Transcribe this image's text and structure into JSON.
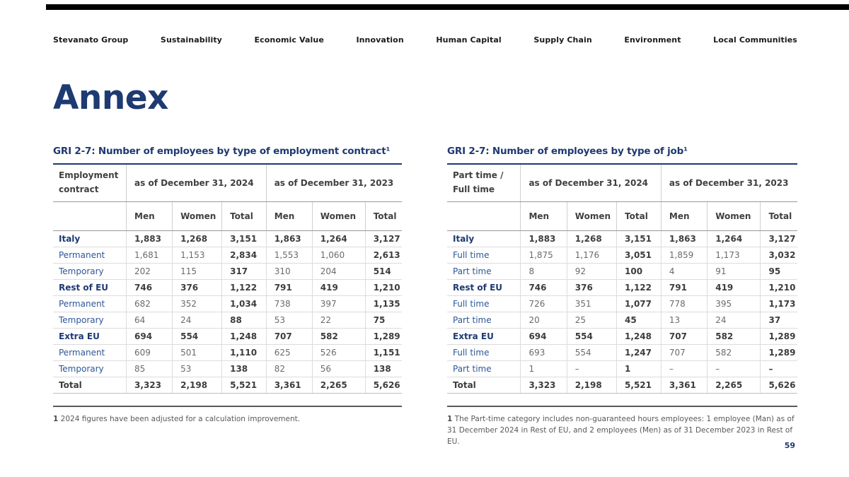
{
  "nav": {
    "items": [
      "Stevanato Group",
      "Sustainability",
      "Economic Value",
      "Innovation",
      "Human Capital",
      "Supply Chain",
      "Environment",
      "Local Communities"
    ]
  },
  "page_title": "Annex",
  "page_number": "59",
  "colors": {
    "navy_accent": "#1e3a72",
    "link_blue": "#2e5697",
    "top_bar": "#000000"
  },
  "tables": [
    {
      "title": "GRI 2-7: Number of employees by type of employment contract¹",
      "row_header": "Employment contract",
      "col_groups": [
        "as of December 31, 2024",
        "as of December 31, 2023"
      ],
      "sub_cols": [
        "Men",
        "Women",
        "Total",
        "Men",
        "Women",
        "Total"
      ],
      "rows": [
        {
          "label": "Italy",
          "style": "group",
          "values": [
            "1,883",
            "1,268",
            "3,151",
            "1,863",
            "1,264",
            "3,127"
          ]
        },
        {
          "label": "Permanent",
          "style": "sub",
          "values": [
            "1,681",
            "1,153",
            "2,834",
            "1,553",
            "1,060",
            "2,613"
          ]
        },
        {
          "label": "Temporary",
          "style": "sub",
          "values": [
            "202",
            "115",
            "317",
            "310",
            "204",
            "514"
          ]
        },
        {
          "label": "Rest of EU",
          "style": "group",
          "values": [
            "746",
            "376",
            "1,122",
            "791",
            "419",
            "1,210"
          ]
        },
        {
          "label": "Permanent",
          "style": "sub",
          "values": [
            "682",
            "352",
            "1,034",
            "738",
            "397",
            "1,135"
          ]
        },
        {
          "label": "Temporary",
          "style": "sub",
          "values": [
            "64",
            "24",
            "88",
            "53",
            "22",
            "75"
          ]
        },
        {
          "label": "Extra EU",
          "style": "group",
          "values": [
            "694",
            "554",
            "1,248",
            "707",
            "582",
            "1,289"
          ]
        },
        {
          "label": "Permanent",
          "style": "sub",
          "values": [
            "609",
            "501",
            "1,110",
            "625",
            "526",
            "1,151"
          ]
        },
        {
          "label": "Temporary",
          "style": "sub",
          "values": [
            "85",
            "53",
            "138",
            "82",
            "56",
            "138"
          ]
        },
        {
          "label": "Total",
          "style": "total",
          "values": [
            "3,323",
            "2,198",
            "5,521",
            "3,361",
            "2,265",
            "5,626"
          ]
        }
      ],
      "footnote": {
        "marker": "1",
        "text": "2024 figures have been adjusted for a calculation improvement."
      }
    },
    {
      "title": "GRI 2-7: Number of employees by type of job¹",
      "row_header": "Part time / Full time",
      "col_groups": [
        "as of December 31, 2024",
        "as of December 31, 2023"
      ],
      "sub_cols": [
        "Men",
        "Women",
        "Total",
        "Men",
        "Women",
        "Total"
      ],
      "rows": [
        {
          "label": "Italy",
          "style": "group",
          "values": [
            "1,883",
            "1,268",
            "3,151",
            "1,863",
            "1,264",
            "3,127"
          ]
        },
        {
          "label": "Full time",
          "style": "sub",
          "values": [
            "1,875",
            "1,176",
            "3,051",
            "1,859",
            "1,173",
            "3,032"
          ]
        },
        {
          "label": "Part time",
          "style": "sub",
          "values": [
            "8",
            "92",
            "100",
            "4",
            "91",
            "95"
          ]
        },
        {
          "label": "Rest of EU",
          "style": "group",
          "values": [
            "746",
            "376",
            "1,122",
            "791",
            "419",
            "1,210"
          ]
        },
        {
          "label": "Full time",
          "style": "sub",
          "values": [
            "726",
            "351",
            "1,077",
            "778",
            "395",
            "1,173"
          ]
        },
        {
          "label": "Part time",
          "style": "sub",
          "values": [
            "20",
            "25",
            "45",
            "13",
            "24",
            "37"
          ]
        },
        {
          "label": "Extra EU",
          "style": "group",
          "values": [
            "694",
            "554",
            "1,248",
            "707",
            "582",
            "1,289"
          ]
        },
        {
          "label": "Full time",
          "style": "sub",
          "values": [
            "693",
            "554",
            "1,247",
            "707",
            "582",
            "1,289"
          ]
        },
        {
          "label": "Part time",
          "style": "sub",
          "values": [
            "1",
            "–",
            "1",
            "–",
            "–",
            "–"
          ]
        },
        {
          "label": "Total",
          "style": "total",
          "values": [
            "3,323",
            "2,198",
            "5,521",
            "3,361",
            "2,265",
            "5,626"
          ]
        }
      ],
      "footnote": {
        "marker": "1",
        "text": "The Part-time category includes non-guaranteed hours employees: 1 employee (Man) as of 31 December 2024 in Rest of EU, and 2 employees (Men) as of 31 December 2023 in Rest of EU."
      }
    }
  ]
}
